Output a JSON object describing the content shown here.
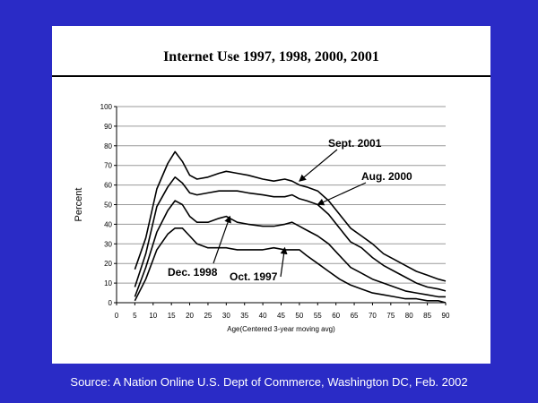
{
  "source": "Source: A Nation Online  U.S. Dept of Commerce, Washington DC, Feb. 2002",
  "chart_data": {
    "type": "line",
    "title": "Internet Use 1997, 1998, 2000, 2001",
    "xlabel": "Age(Centered 3-year moving avg)",
    "ylabel": "Percent",
    "xlim": [
      0,
      90
    ],
    "ylim": [
      0,
      100
    ],
    "xticks": [
      0,
      5,
      10,
      15,
      20,
      25,
      30,
      35,
      40,
      45,
      50,
      55,
      60,
      65,
      70,
      75,
      80,
      85,
      90
    ],
    "yticks": [
      0,
      10,
      20,
      30,
      40,
      50,
      60,
      70,
      80,
      90,
      100
    ],
    "grid": "horizontal",
    "legend": "none (series labeled with callout arrows)",
    "series": [
      {
        "name": "Sept. 2001",
        "x": [
          5,
          8,
          11,
          14,
          16,
          18,
          20,
          22,
          25,
          28,
          30,
          33,
          36,
          40,
          43,
          46,
          48,
          50,
          52,
          55,
          58,
          61,
          64,
          67,
          70,
          73,
          76,
          79,
          82,
          85,
          88,
          90
        ],
        "y": [
          17,
          33,
          58,
          71,
          77,
          72,
          65,
          63,
          64,
          66,
          67,
          66,
          65,
          63,
          62,
          63,
          62,
          60,
          59,
          57,
          52,
          45,
          38,
          34,
          30,
          25,
          22,
          19,
          16,
          14,
          12,
          11
        ]
      },
      {
        "name": "Aug. 2000",
        "x": [
          5,
          8,
          11,
          14,
          16,
          18,
          20,
          22,
          25,
          28,
          30,
          33,
          36,
          40,
          43,
          46,
          48,
          50,
          52,
          55,
          58,
          61,
          64,
          67,
          70,
          73,
          76,
          79,
          82,
          85,
          88,
          90
        ],
        "y": [
          8,
          25,
          49,
          59,
          64,
          61,
          56,
          55,
          56,
          57,
          57,
          57,
          56,
          55,
          54,
          54,
          55,
          53,
          52,
          50,
          45,
          38,
          31,
          28,
          23,
          19,
          16,
          13,
          10,
          8,
          7,
          6
        ]
      },
      {
        "name": "Dec. 1998",
        "x": [
          5,
          8,
          11,
          14,
          16,
          18,
          20,
          22,
          25,
          28,
          30,
          33,
          36,
          40,
          43,
          46,
          48,
          50,
          52,
          55,
          58,
          61,
          64,
          67,
          70,
          73,
          76,
          79,
          82,
          85,
          88,
          90
        ],
        "y": [
          3,
          18,
          36,
          47,
          52,
          50,
          44,
          41,
          41,
          43,
          44,
          41,
          40,
          39,
          39,
          40,
          41,
          39,
          37,
          34,
          30,
          24,
          18,
          15,
          12,
          10,
          8,
          6,
          5,
          4,
          3,
          3
        ]
      },
      {
        "name": "Oct. 1997",
        "x": [
          5,
          8,
          11,
          14,
          16,
          18,
          20,
          22,
          25,
          28,
          30,
          33,
          36,
          40,
          43,
          46,
          48,
          50,
          52,
          55,
          58,
          61,
          64,
          67,
          70,
          73,
          76,
          79,
          82,
          85,
          88,
          90
        ],
        "y": [
          1,
          12,
          27,
          35,
          38,
          38,
          34,
          30,
          28,
          28,
          28,
          27,
          27,
          27,
          28,
          27,
          27,
          27,
          24,
          20,
          16,
          12,
          9,
          7,
          5,
          4,
          3,
          2,
          2,
          1,
          1,
          0
        ]
      }
    ],
    "annotations": [
      {
        "text": "Sept. 2001",
        "points_to": [
          50,
          62
        ]
      },
      {
        "text": "Aug. 2000",
        "points_to": [
          55,
          50
        ]
      },
      {
        "text": "Dec. 1998",
        "points_to": [
          31,
          44
        ]
      },
      {
        "text": "Oct. 1997",
        "points_to": [
          46,
          28
        ]
      }
    ],
    "line_color": "#000000",
    "grid_color": "#9a9a9a"
  }
}
